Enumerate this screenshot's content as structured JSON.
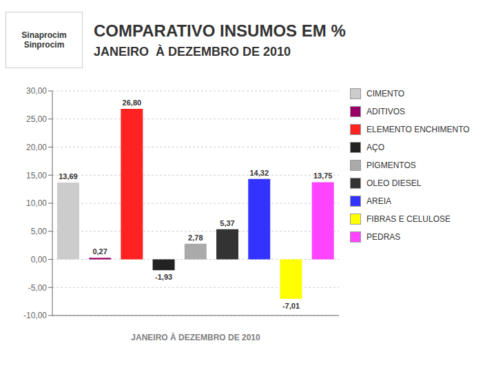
{
  "chart_data": {
    "type": "bar",
    "title": "COMPARATIVO INSUMOS EM %",
    "subtitle": "JANEIRO  À DEZEMBRO DE 2010",
    "annotations": [
      "Sinaprocim",
      "Sinprocim"
    ],
    "xlabel": "JANEIRO À DEZEMBRO DE 2010",
    "categories": [
      "CIMENTO",
      "ADITIVOS",
      "ELEMENTO ENCHIMENTO",
      "AÇO",
      "PIGMENTOS",
      "OLEO DIESEL",
      "AREIA",
      "FIBRAS E CELULOSE",
      "PEDRAS"
    ],
    "values": [
      13.69,
      0.27,
      26.8,
      -1.93,
      2.78,
      5.37,
      14.32,
      -7.01,
      13.75
    ],
    "value_labels": [
      "13,69",
      "0,27",
      "26,80",
      "-1,93",
      "2,78",
      "5,37",
      "14,32",
      "-7,01",
      "13,75"
    ],
    "colors": [
      "#cccccc",
      "#990066",
      "#ff2222",
      "#222222",
      "#aaaaaa",
      "#333333",
      "#3333ff",
      "#ffff00",
      "#ff44ff"
    ],
    "ylim": [
      -10,
      30
    ],
    "yticks": [
      {
        "value": -10,
        "label": "-10,00"
      },
      {
        "value": -5,
        "label": "-5,00"
      },
      {
        "value": 0,
        "label": "0,00"
      },
      {
        "value": 5,
        "label": "5,00"
      },
      {
        "value": 10,
        "label": "10,00"
      },
      {
        "value": 15,
        "label": "15,00"
      },
      {
        "value": 20,
        "label": "20,00"
      },
      {
        "value": 25,
        "label": "25,00"
      },
      {
        "value": 30,
        "label": "30,00"
      }
    ],
    "grid": true,
    "legend": "right",
    "data_labels": true,
    "tick_labels": "y"
  }
}
